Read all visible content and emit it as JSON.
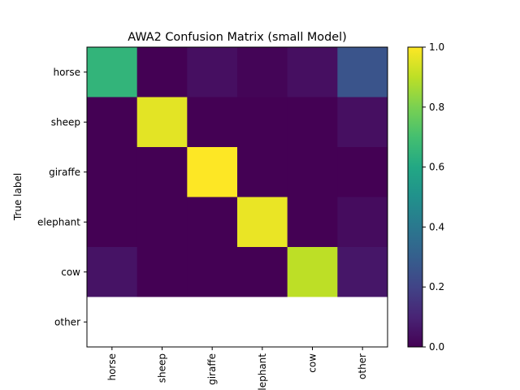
{
  "chart_data": {
    "type": "heatmap",
    "title": "AWA2 Confusion Matrix (small Model)",
    "ylabel": "True label",
    "xlabel": "",
    "x_categories": [
      "horse",
      "sheep",
      "giraffe",
      "elephant",
      "cow",
      "other"
    ],
    "y_categories": [
      "horse",
      "sheep",
      "giraffe",
      "elephant",
      "cow",
      "other"
    ],
    "values": [
      [
        0.65,
        0.0,
        0.04,
        0.01,
        0.04,
        0.26
      ],
      [
        0.0,
        0.96,
        0.0,
        0.0,
        0.0,
        0.04
      ],
      [
        0.0,
        0.0,
        1.0,
        0.0,
        0.0,
        0.0
      ],
      [
        0.0,
        0.0,
        0.0,
        0.97,
        0.0,
        0.03
      ],
      [
        0.05,
        0.0,
        0.0,
        0.0,
        0.9,
        0.06
      ],
      [
        null,
        null,
        null,
        null,
        null,
        null
      ]
    ],
    "colorbar": {
      "colormap": "viridis",
      "range": [
        0.0,
        1.0
      ],
      "ticks": [
        "0.0",
        "0.2",
        "0.4",
        "0.6",
        "0.8",
        "1.0"
      ]
    }
  }
}
